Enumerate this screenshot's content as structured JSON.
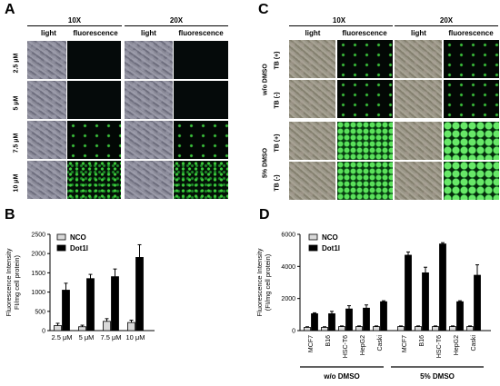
{
  "panels": {
    "A": {
      "letter": "A",
      "mag_headers": [
        "10X",
        "20X"
      ],
      "col_headers": [
        "light",
        "fluorescence",
        "light",
        "fluorescence"
      ],
      "row_labels": [
        "2.5 μM",
        "5 μM",
        "7.5 μM",
        "10 μM"
      ]
    },
    "B": {
      "letter": "B"
    },
    "C": {
      "letter": "C",
      "mag_headers": [
        "10X",
        "20X"
      ],
      "col_headers": [
        "light",
        "fluorescence",
        "light",
        "fluorescence"
      ],
      "group_labels": [
        "w/o DMSO",
        "5% DMSO"
      ],
      "row_labels": [
        "TB (+)",
        "TB (-)",
        "TB (+)",
        "TB (-)"
      ]
    },
    "D": {
      "letter": "D"
    }
  },
  "chart_data": [
    {
      "type": "bar",
      "panel": "B",
      "ylabel": "Fluorescence Intensity\nFI/mg cell protein)",
      "ylim": [
        0,
        2500
      ],
      "yticks": [
        "0",
        "500",
        "1000",
        "1500",
        "2000",
        "2500"
      ],
      "categories": [
        "2.5 μM",
        "5 μM",
        "7.5 μM",
        "10 μM"
      ],
      "legend": [
        "NCO",
        "Dot1l"
      ],
      "series": [
        {
          "name": "NCO",
          "color": "#d9d9d9",
          "values": [
            130,
            100,
            240,
            210
          ],
          "errors": [
            60,
            40,
            70,
            60
          ]
        },
        {
          "name": "Dot1l",
          "color": "#000000",
          "values": [
            1050,
            1350,
            1400,
            1900
          ],
          "errors": [
            180,
            110,
            200,
            330
          ]
        }
      ]
    },
    {
      "type": "bar",
      "panel": "D",
      "ylabel": "Fluorescence Intensity\n(FI/mg cell protein)",
      "ylim": [
        0,
        6000
      ],
      "yticks": [
        "0",
        "2000",
        "4000",
        "6000"
      ],
      "categories": [
        "MCF7",
        "B16",
        "HSC-T6",
        "HepG2",
        "Caski",
        "MCF7",
        "B16",
        "HSC-T6",
        "HepG2",
        "Caski"
      ],
      "groups": [
        "w/o DMSO",
        "5% DMSO"
      ],
      "legend": [
        "NCO",
        "Dot1l"
      ],
      "series": [
        {
          "name": "NCO",
          "color": "#d9d9d9",
          "values": [
            200,
            200,
            250,
            250,
            250,
            250,
            250,
            250,
            250,
            250
          ],
          "errors": [
            40,
            40,
            40,
            40,
            40,
            40,
            40,
            40,
            40,
            40
          ]
        },
        {
          "name": "Dot1l",
          "color": "#000000",
          "values": [
            1050,
            1050,
            1350,
            1400,
            1800,
            4700,
            3600,
            5400,
            1800,
            3450
          ],
          "errors": [
            60,
            150,
            200,
            200,
            60,
            200,
            350,
            80,
            60,
            650
          ]
        }
      ]
    }
  ]
}
